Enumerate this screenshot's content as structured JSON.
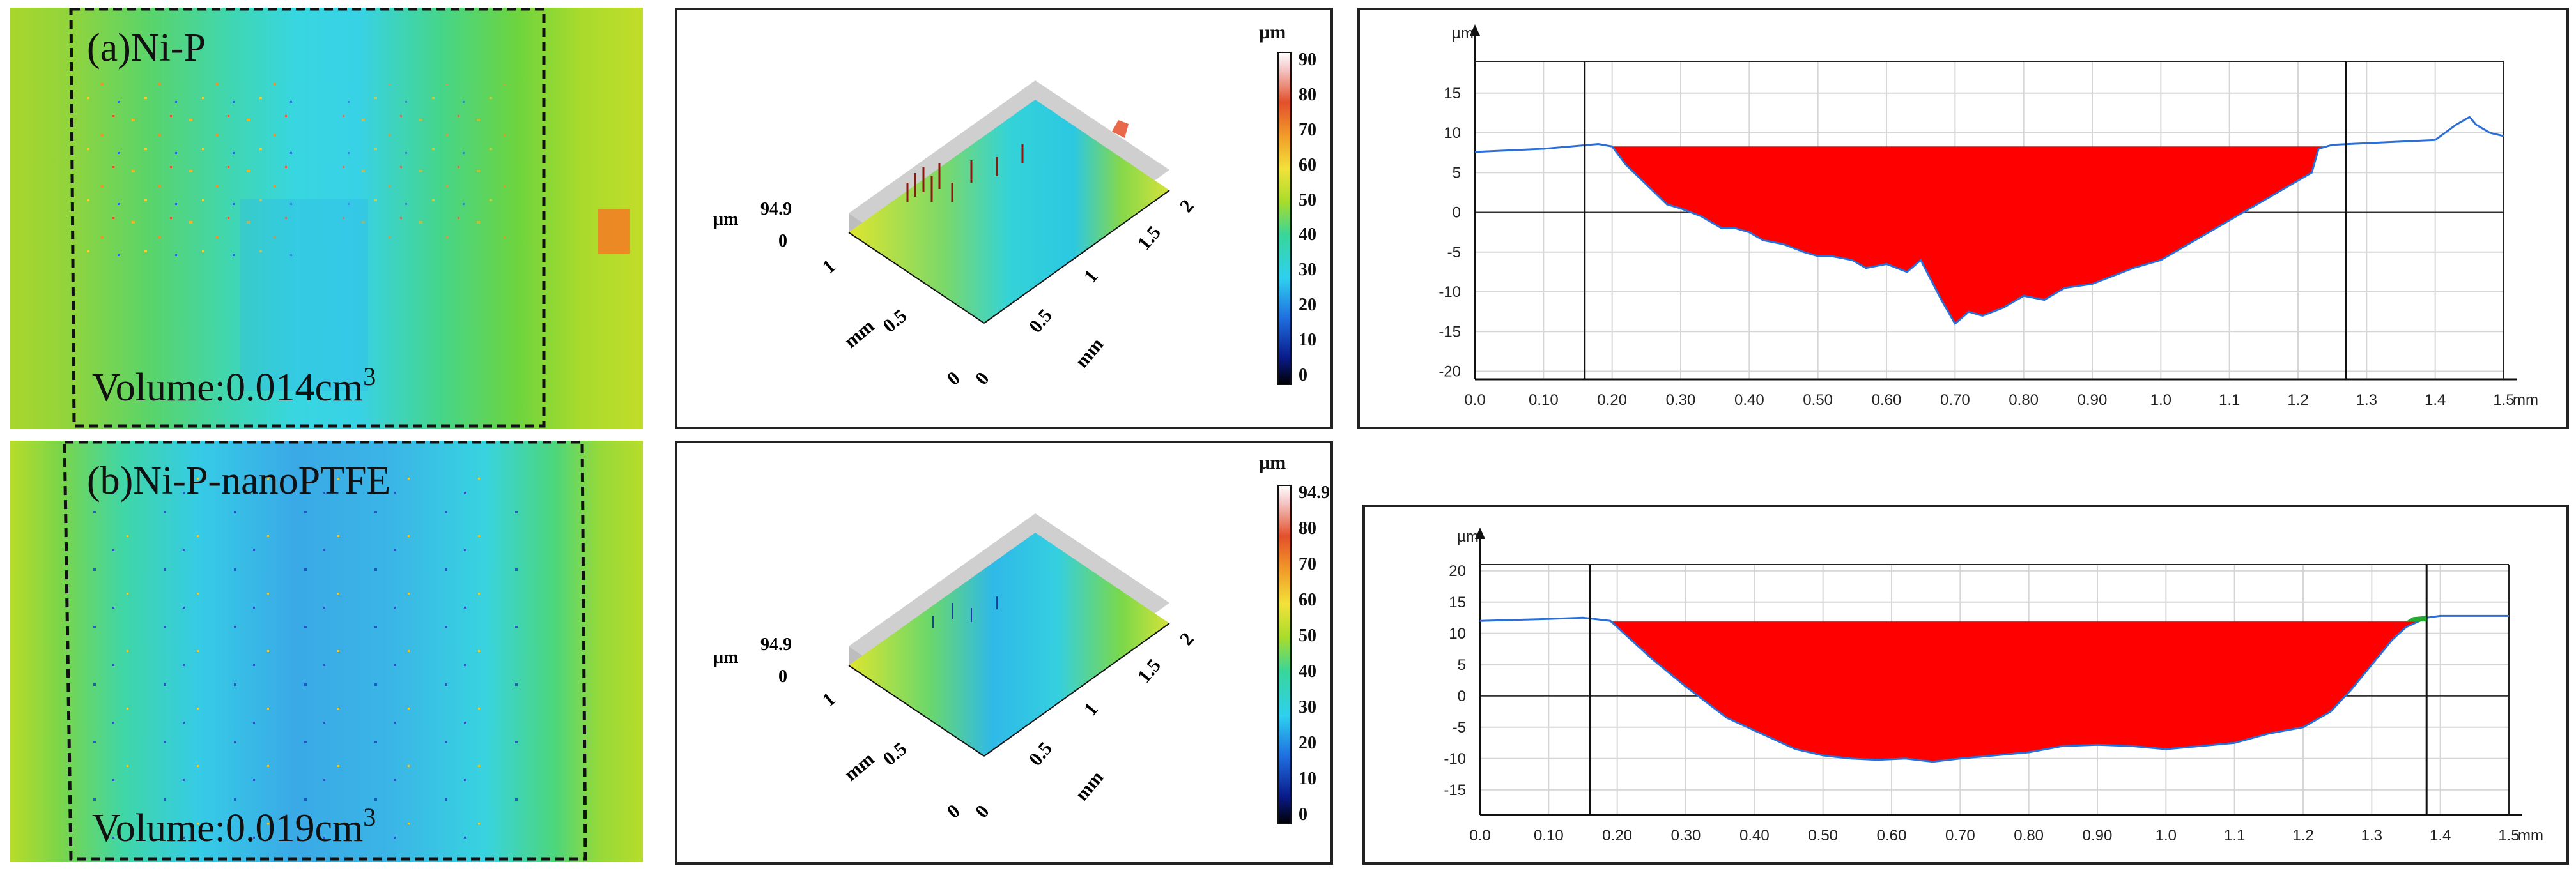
{
  "colors": {
    "profile_fill": "#ff0000",
    "profile_line": "#2b6fd6",
    "green_fill": "#22aa33",
    "map_green": "#b8df2a",
    "map_cyan": "#36d7e6",
    "map_blue": "#3aa6e8"
  },
  "top_map": {
    "label": "(a)Ni-P",
    "volume_prefix": "Volume:0.014cm",
    "volume_sup": "3"
  },
  "bottom_map": {
    "label": "(b)Ni-P-nanoPTFE",
    "volume_prefix": "Volume:0.019cm",
    "volume_sup": "3"
  },
  "top_3d": {
    "colorbar_unit": "µm",
    "colorbar_ticks": [
      "90",
      "80",
      "70",
      "60",
      "50",
      "40",
      "30",
      "20",
      "10",
      "0"
    ],
    "z_label": "µm",
    "z_top": "94.9",
    "z_bottom": "0",
    "axis_left_ticks": [
      "1",
      "0.5",
      "0"
    ],
    "axis_left_unit": "mm",
    "axis_right_ticks": [
      "0",
      "0.5",
      "1",
      "1.5",
      "2"
    ],
    "axis_right_unit": "mm"
  },
  "bottom_3d": {
    "colorbar_unit": "µm",
    "colorbar_ticks": [
      "94.9",
      "80",
      "70",
      "60",
      "50",
      "40",
      "30",
      "20",
      "10",
      "0"
    ],
    "z_label": "µm",
    "z_top": "94.9",
    "z_bottom": "0",
    "axis_left_ticks": [
      "1",
      "0.5",
      "0"
    ],
    "axis_left_unit": "mm",
    "axis_right_ticks": [
      "0",
      "0.5",
      "1",
      "1.5",
      "2"
    ],
    "axis_right_unit": "mm"
  },
  "chart_data": [
    {
      "type": "area",
      "title": "",
      "xlabel": "mm",
      "ylabel": "µm",
      "xlim": [
        0,
        1.5
      ],
      "ylim": [
        -21,
        19
      ],
      "x_tick_labels": [
        "0.0",
        "0.10",
        "0.20",
        "0.30",
        "0.40",
        "0.50",
        "0.60",
        "0.70",
        "0.80",
        "0.90",
        "1.0",
        "1.1",
        "1.2",
        "1.3",
        "1.4",
        "1.5"
      ],
      "y_ticks": [
        15,
        10,
        5,
        0,
        -5,
        -10,
        -15,
        -20
      ],
      "cursor_lines_x": [
        0.16,
        1.27
      ],
      "fill_level": 8.3,
      "series": [
        {
          "name": "profile",
          "x": [
            0,
            0.1,
            0.18,
            0.2,
            0.22,
            0.25,
            0.28,
            0.3,
            0.33,
            0.36,
            0.38,
            0.4,
            0.42,
            0.45,
            0.48,
            0.5,
            0.52,
            0.55,
            0.57,
            0.6,
            0.63,
            0.65,
            0.68,
            0.7,
            0.72,
            0.74,
            0.77,
            0.8,
            0.83,
            0.86,
            0.9,
            0.93,
            0.96,
            1.0,
            1.03,
            1.06,
            1.1,
            1.13,
            1.16,
            1.2,
            1.22,
            1.23,
            1.25,
            1.3,
            1.35,
            1.4,
            1.43,
            1.45,
            1.46,
            1.48,
            1.5
          ],
          "y": [
            7.6,
            8.0,
            8.6,
            8.3,
            6.0,
            3.5,
            1.0,
            0.5,
            -0.5,
            -2.0,
            -2.0,
            -2.5,
            -3.5,
            -4.0,
            -5.0,
            -5.5,
            -5.5,
            -6.0,
            -7.0,
            -6.5,
            -7.5,
            -6.0,
            -11.0,
            -14.0,
            -12.5,
            -13.0,
            -12.0,
            -10.5,
            -11.0,
            -9.5,
            -9.0,
            -8.0,
            -7.0,
            -6.0,
            -4.5,
            -3.0,
            -1.0,
            0.5,
            2.0,
            4.0,
            5.0,
            8.0,
            8.5,
            8.7,
            8.9,
            9.1,
            11.0,
            12.0,
            11.0,
            10.0,
            9.6
          ]
        }
      ]
    },
    {
      "type": "area",
      "title": "",
      "xlabel": "mm",
      "ylabel": "µm",
      "xlim": [
        0,
        1.5
      ],
      "ylim": [
        -19,
        21
      ],
      "x_tick_labels": [
        "0.0",
        "0.10",
        "0.20",
        "0.30",
        "0.40",
        "0.50",
        "0.60",
        "0.70",
        "0.80",
        "0.90",
        "1.0",
        "1.1",
        "1.2",
        "1.3",
        "1.4",
        "1.5"
      ],
      "y_ticks": [
        20,
        15,
        10,
        5,
        0,
        -5,
        -10,
        -15
      ],
      "cursor_lines_x": [
        0.16,
        1.38
      ],
      "fill_level": 11.9,
      "series": [
        {
          "name": "profile",
          "x": [
            0,
            0.1,
            0.15,
            0.19,
            0.21,
            0.25,
            0.3,
            0.33,
            0.36,
            0.4,
            0.43,
            0.46,
            0.5,
            0.54,
            0.58,
            0.62,
            0.66,
            0.7,
            0.75,
            0.8,
            0.85,
            0.9,
            0.95,
            1.0,
            1.05,
            1.1,
            1.15,
            1.2,
            1.24,
            1.27,
            1.3,
            1.33,
            1.35,
            1.36,
            1.38,
            1.4,
            1.45,
            1.5
          ],
          "y": [
            12.0,
            12.3,
            12.5,
            12.0,
            10.0,
            6.0,
            1.5,
            -1.0,
            -3.5,
            -5.5,
            -7.0,
            -8.5,
            -9.5,
            -10.0,
            -10.2,
            -10.0,
            -10.5,
            -10.0,
            -9.5,
            -9.0,
            -8.0,
            -7.8,
            -8.0,
            -8.5,
            -8.0,
            -7.5,
            -6.0,
            -5.0,
            -2.5,
            1.0,
            5.0,
            9.0,
            11.0,
            11.5,
            12.5,
            12.8,
            12.8,
            12.8
          ]
        }
      ]
    }
  ]
}
